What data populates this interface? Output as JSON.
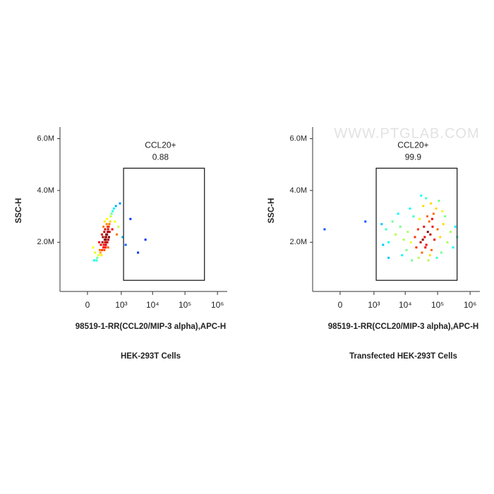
{
  "chart_data": [
    {
      "type": "scatter",
      "title": "HEK-293T Cells",
      "x_label": "98519-1-RR(CCL20/MIP-3 alpha),APC-H",
      "y_label": "SSC-H",
      "xscale": "symlog",
      "xlim": [
        -600,
        2000000
      ],
      "ylim": [
        100000,
        6450000
      ],
      "xticks": [
        0,
        {
          "value": 1000,
          "label": "10³"
        },
        {
          "value": 10000,
          "label": "10⁴"
        },
        {
          "value": 100000,
          "label": "10⁵"
        },
        {
          "value": 1000000,
          "label": "10⁶"
        }
      ],
      "yticks": [
        {
          "value": 2000000,
          "label": "2.0M"
        },
        {
          "value": 4000000,
          "label": "4.0M"
        },
        {
          "value": 6000000,
          "label": "6.0M"
        }
      ],
      "gate": {
        "label": "CCL20+",
        "percent": 0.88,
        "x": [
          1190,
          398000
        ],
        "y": [
          530000,
          4860000
        ]
      },
      "x": [
        270,
        250,
        300,
        220,
        320,
        180,
        350,
        280,
        240,
        310,
        200,
        260,
        330,
        290,
        150,
        400,
        230,
        270,
        360,
        190,
        420,
        120,
        300,
        250,
        340,
        210,
        380,
        160,
        450,
        100,
        280,
        230,
        500,
        90,
        320,
        260,
        180,
        370,
        140,
        550,
        70,
        600,
        290,
        210,
        480,
        130,
        650,
        60,
        700,
        240,
        330,
        170,
        800,
        50,
        900,
        1100,
        1400,
        2000,
        3500,
        6000
      ],
      "y": [
        2100000,
        2000000,
        2300000,
        1900000,
        2400000,
        1700000,
        2600000,
        2200000,
        2100000,
        2000000,
        2200000,
        1800000,
        2500000,
        2700000,
        1600000,
        2800000,
        2400000,
        1900000,
        2200000,
        2000000,
        3000000,
        1500000,
        2900000,
        2500000,
        2100000,
        1800000,
        2400000,
        1900000,
        3100000,
        1400000,
        2300000,
        1700000,
        3200000,
        1300000,
        2600000,
        2200000,
        2300000,
        2700000,
        1700000,
        3300000,
        1600000,
        2800000,
        2000000,
        2600000,
        2500000,
        2000000,
        3400000,
        1300000,
        2300000,
        2800000,
        1800000,
        1500000,
        2600000,
        1800000,
        3500000,
        2200000,
        1900000,
        2900000,
        1600000,
        2100000
      ]
    },
    {
      "type": "scatter",
      "title": "Transfected HEK-293T Cells",
      "x_label": "98519-1-RR(CCL20/MIP-3 alpha),APC-H",
      "y_label": "SSC-H",
      "watermark": "WWW.PTGLAB.COM",
      "xscale": "symlog",
      "xlim": [
        -600,
        2000000
      ],
      "ylim": [
        100000,
        6450000
      ],
      "xticks": [
        0,
        {
          "value": 1000,
          "label": "10³"
        },
        {
          "value": 10000,
          "label": "10⁴"
        },
        {
          "value": 100000,
          "label": "10⁵"
        },
        {
          "value": 1000000,
          "label": "10⁶"
        }
      ],
      "yticks": [
        {
          "value": 2000000,
          "label": "2.0M"
        },
        {
          "value": 4000000,
          "label": "4.0M"
        },
        {
          "value": 6000000,
          "label": "6.0M"
        }
      ],
      "gate": {
        "label": "CCL20+",
        "percent": 99.9,
        "x": [
          1190,
          398000
        ],
        "y": [
          530000,
          4860000
        ]
      },
      "x": [
        40000,
        35000,
        50000,
        30000,
        60000,
        25000,
        45000,
        70000,
        20000,
        55000,
        38000,
        42000,
        80000,
        15000,
        100000,
        28000,
        65000,
        12000,
        48000,
        33000,
        120000,
        9000,
        75000,
        22000,
        150000,
        7000,
        58000,
        18000,
        90000,
        5000,
        200000,
        36000,
        11000,
        130000,
        4000,
        250000,
        62000,
        3000,
        26000,
        170000,
        8000,
        44000,
        2500,
        300000,
        14000,
        95000,
        2000,
        52000,
        6000,
        110000,
        1800,
        350000,
        31000,
        16000,
        140000,
        500,
        -200,
        3000,
        400000,
        68000
      ],
      "y": [
        2200000,
        2100000,
        2400000,
        2000000,
        2300000,
        2500000,
        1900000,
        2600000,
        2200000,
        2800000,
        2600000,
        1800000,
        2100000,
        2000000,
        2500000,
        2900000,
        1700000,
        2400000,
        3000000,
        1600000,
        2200000,
        2100000,
        3100000,
        1800000,
        2700000,
        2600000,
        1500000,
        3000000,
        3300000,
        2300000,
        2000000,
        3400000,
        1700000,
        1600000,
        2800000,
        2400000,
        3500000,
        2000000,
        1400000,
        3000000,
        1500000,
        3700000,
        2500000,
        1800000,
        3300000,
        1400000,
        1900000,
        1300000,
        3100000,
        3600000,
        2700000,
        2600000,
        3800000,
        1300000,
        3200000,
        2800000,
        2500000,
        1400000,
        2200000,
        2900000
      ]
    }
  ]
}
